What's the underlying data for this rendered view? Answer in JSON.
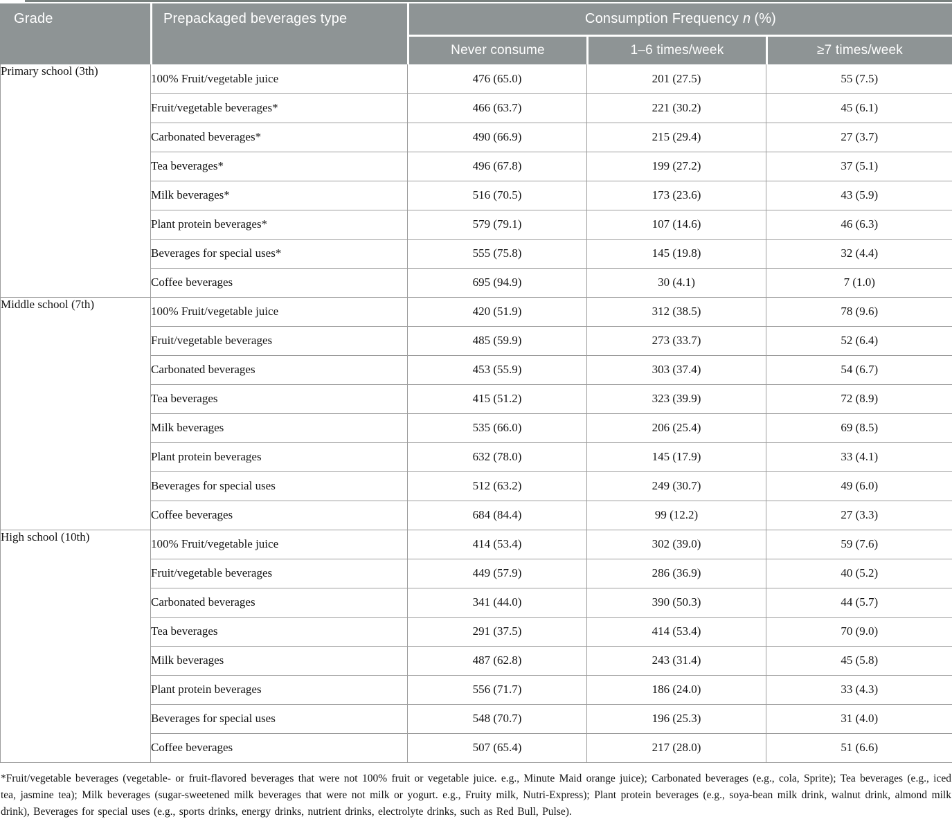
{
  "table": {
    "header": {
      "col_grade": "Grade",
      "col_type": "Prepackaged beverages type",
      "freq_group": {
        "pre": "Consumption Frequency",
        "n": "n",
        "post": "(%)"
      },
      "sub_cols": [
        "Never consume",
        "1–6 times/week",
        "≥7 times/week"
      ]
    },
    "sections": [
      {
        "grade": "Primary school (3th)",
        "rows": [
          {
            "type": "100% Fruit/vegetable juice",
            "values": [
              "476 (65.0)",
              "201 (27.5)",
              "55 (7.5)"
            ]
          },
          {
            "type": "Fruit/vegetable beverages*",
            "values": [
              "466 (63.7)",
              "221 (30.2)",
              "45 (6.1)"
            ]
          },
          {
            "type": "Carbonated beverages*",
            "values": [
              "490 (66.9)",
              "215 (29.4)",
              "27 (3.7)"
            ]
          },
          {
            "type": "Tea beverages*",
            "values": [
              "496 (67.8)",
              "199 (27.2)",
              "37 (5.1)"
            ]
          },
          {
            "type": "Milk beverages*",
            "values": [
              "516 (70.5)",
              "173 (23.6)",
              "43 (5.9)"
            ]
          },
          {
            "type": "Plant protein beverages*",
            "values": [
              "579 (79.1)",
              "107 (14.6)",
              "46 (6.3)"
            ]
          },
          {
            "type": "Beverages for special uses*",
            "values": [
              "555 (75.8)",
              "145 (19.8)",
              "32 (4.4)"
            ]
          },
          {
            "type": "Coffee beverages",
            "values": [
              "695 (94.9)",
              "30 (4.1)",
              "7 (1.0)"
            ]
          }
        ]
      },
      {
        "grade": "Middle school (7th)",
        "rows": [
          {
            "type": "100% Fruit/vegetable juice",
            "values": [
              "420 (51.9)",
              "312 (38.5)",
              "78 (9.6)"
            ]
          },
          {
            "type": "Fruit/vegetable beverages",
            "values": [
              "485 (59.9)",
              "273 (33.7)",
              "52 (6.4)"
            ]
          },
          {
            "type": "Carbonated beverages",
            "values": [
              "453 (55.9)",
              "303 (37.4)",
              "54 (6.7)"
            ]
          },
          {
            "type": "Tea beverages",
            "values": [
              "415 (51.2)",
              "323 (39.9)",
              "72 (8.9)"
            ]
          },
          {
            "type": "Milk beverages",
            "values": [
              "535 (66.0)",
              "206 (25.4)",
              "69 (8.5)"
            ]
          },
          {
            "type": "Plant protein beverages",
            "values": [
              "632 (78.0)",
              "145 (17.9)",
              "33 (4.1)"
            ]
          },
          {
            "type": "Beverages for special uses",
            "values": [
              "512 (63.2)",
              "249 (30.7)",
              "49 (6.0)"
            ]
          },
          {
            "type": "Coffee beverages",
            "values": [
              "684 (84.4)",
              "99 (12.2)",
              "27 (3.3)"
            ]
          }
        ]
      },
      {
        "grade": "High school (10th)",
        "rows": [
          {
            "type": "100% Fruit/vegetable juice",
            "values": [
              "414 (53.4)",
              "302 (39.0)",
              "59 (7.6)"
            ]
          },
          {
            "type": "Fruit/vegetable beverages",
            "values": [
              "449 (57.9)",
              "286 (36.9)",
              "40 (5.2)"
            ]
          },
          {
            "type": "Carbonated beverages",
            "values": [
              "341 (44.0)",
              "390 (50.3)",
              "44 (5.7)"
            ]
          },
          {
            "type": "Tea beverages",
            "values": [
              "291 (37.5)",
              "414 (53.4)",
              "70 (9.0)"
            ]
          },
          {
            "type": "Milk beverages",
            "values": [
              "487 (62.8)",
              "243 (31.4)",
              "45 (5.8)"
            ]
          },
          {
            "type": "Plant protein beverages",
            "values": [
              "556 (71.7)",
              "186 (24.0)",
              "33 (4.3)"
            ]
          },
          {
            "type": "Beverages for special uses",
            "values": [
              "548 (70.7)",
              "196 (25.3)",
              "31 (4.0)"
            ]
          },
          {
            "type": "Coffee beverages",
            "values": [
              "507 (65.4)",
              "217 (28.0)",
              "51 (6.6)"
            ]
          }
        ]
      }
    ],
    "footnote": "*Fruit/vegetable beverages (vegetable- or fruit-flavored beverages that were not 100% fruit or vegetable juice. e.g., Minute Maid orange juice); Carbonated beverages (e.g., cola, Sprite); Tea beverages (e.g., iced tea, jasmine tea); Milk beverages (sugar-sweetened milk beverages that were not milk or yogurt. e.g., Fruity milk, Nutri-Express); Plant protein beverages (e.g., soya-bean milk drink, walnut drink, almond milk drink), Beverages for special uses (e.g., sports drinks, energy drinks, nutrient drinks, electrolyte drinks, such as Red Bull, Pulse)."
  },
  "colors": {
    "header_bg": "#8e9495",
    "top_rule": "#79817f",
    "border": "#9c9c9c",
    "text": "#141414",
    "header_text": "#ffffff"
  }
}
